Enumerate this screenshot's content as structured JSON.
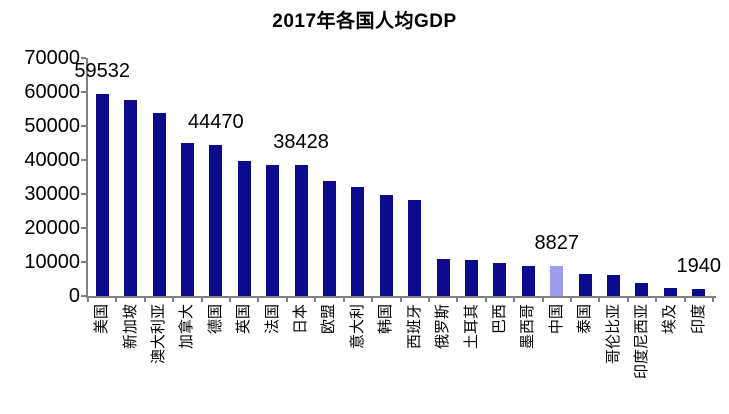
{
  "title": "2017年各国人均GDP",
  "chart_data": {
    "type": "bar",
    "title": "2017年各国人均GDP",
    "xlabel": "",
    "ylabel": "",
    "categories": [
      "美国",
      "新加坡",
      "澳大利亚",
      "加拿大",
      "德国",
      "英国",
      "法国",
      "日本",
      "欧盟",
      "意大利",
      "韩国",
      "西班牙",
      "俄罗斯",
      "土耳其",
      "巴西",
      "墨西哥",
      "中国",
      "泰国",
      "哥伦比亚",
      "印度尼西亚",
      "埃及",
      "印度"
    ],
    "values": [
      59532,
      57714,
      53800,
      45032,
      44470,
      39720,
      38477,
      38428,
      33715,
      31953,
      29743,
      28157,
      10743,
      10546,
      9821,
      8902,
      8827,
      6594,
      6301,
      3847,
      2412,
      1940
    ],
    "data_labels": [
      {
        "index": 0,
        "text": "59532"
      },
      {
        "index": 4,
        "text": "44470"
      },
      {
        "index": 7,
        "text": "38428"
      },
      {
        "index": 16,
        "text": "8827"
      },
      {
        "index": 21,
        "text": "1940"
      }
    ],
    "highlight_index": 16,
    "ylim": [
      0,
      70000
    ],
    "ytick_step": 10000,
    "ytick_labels": [
      "0",
      "10000",
      "20000",
      "30000",
      "40000",
      "50000",
      "60000",
      "70000"
    ],
    "grid": false,
    "legend": false,
    "colors": {
      "bar": "#0B0B8B",
      "highlight": "#9C9CF0",
      "axis": "#808080",
      "text": "#000000",
      "background": "#FFFFFF"
    }
  }
}
